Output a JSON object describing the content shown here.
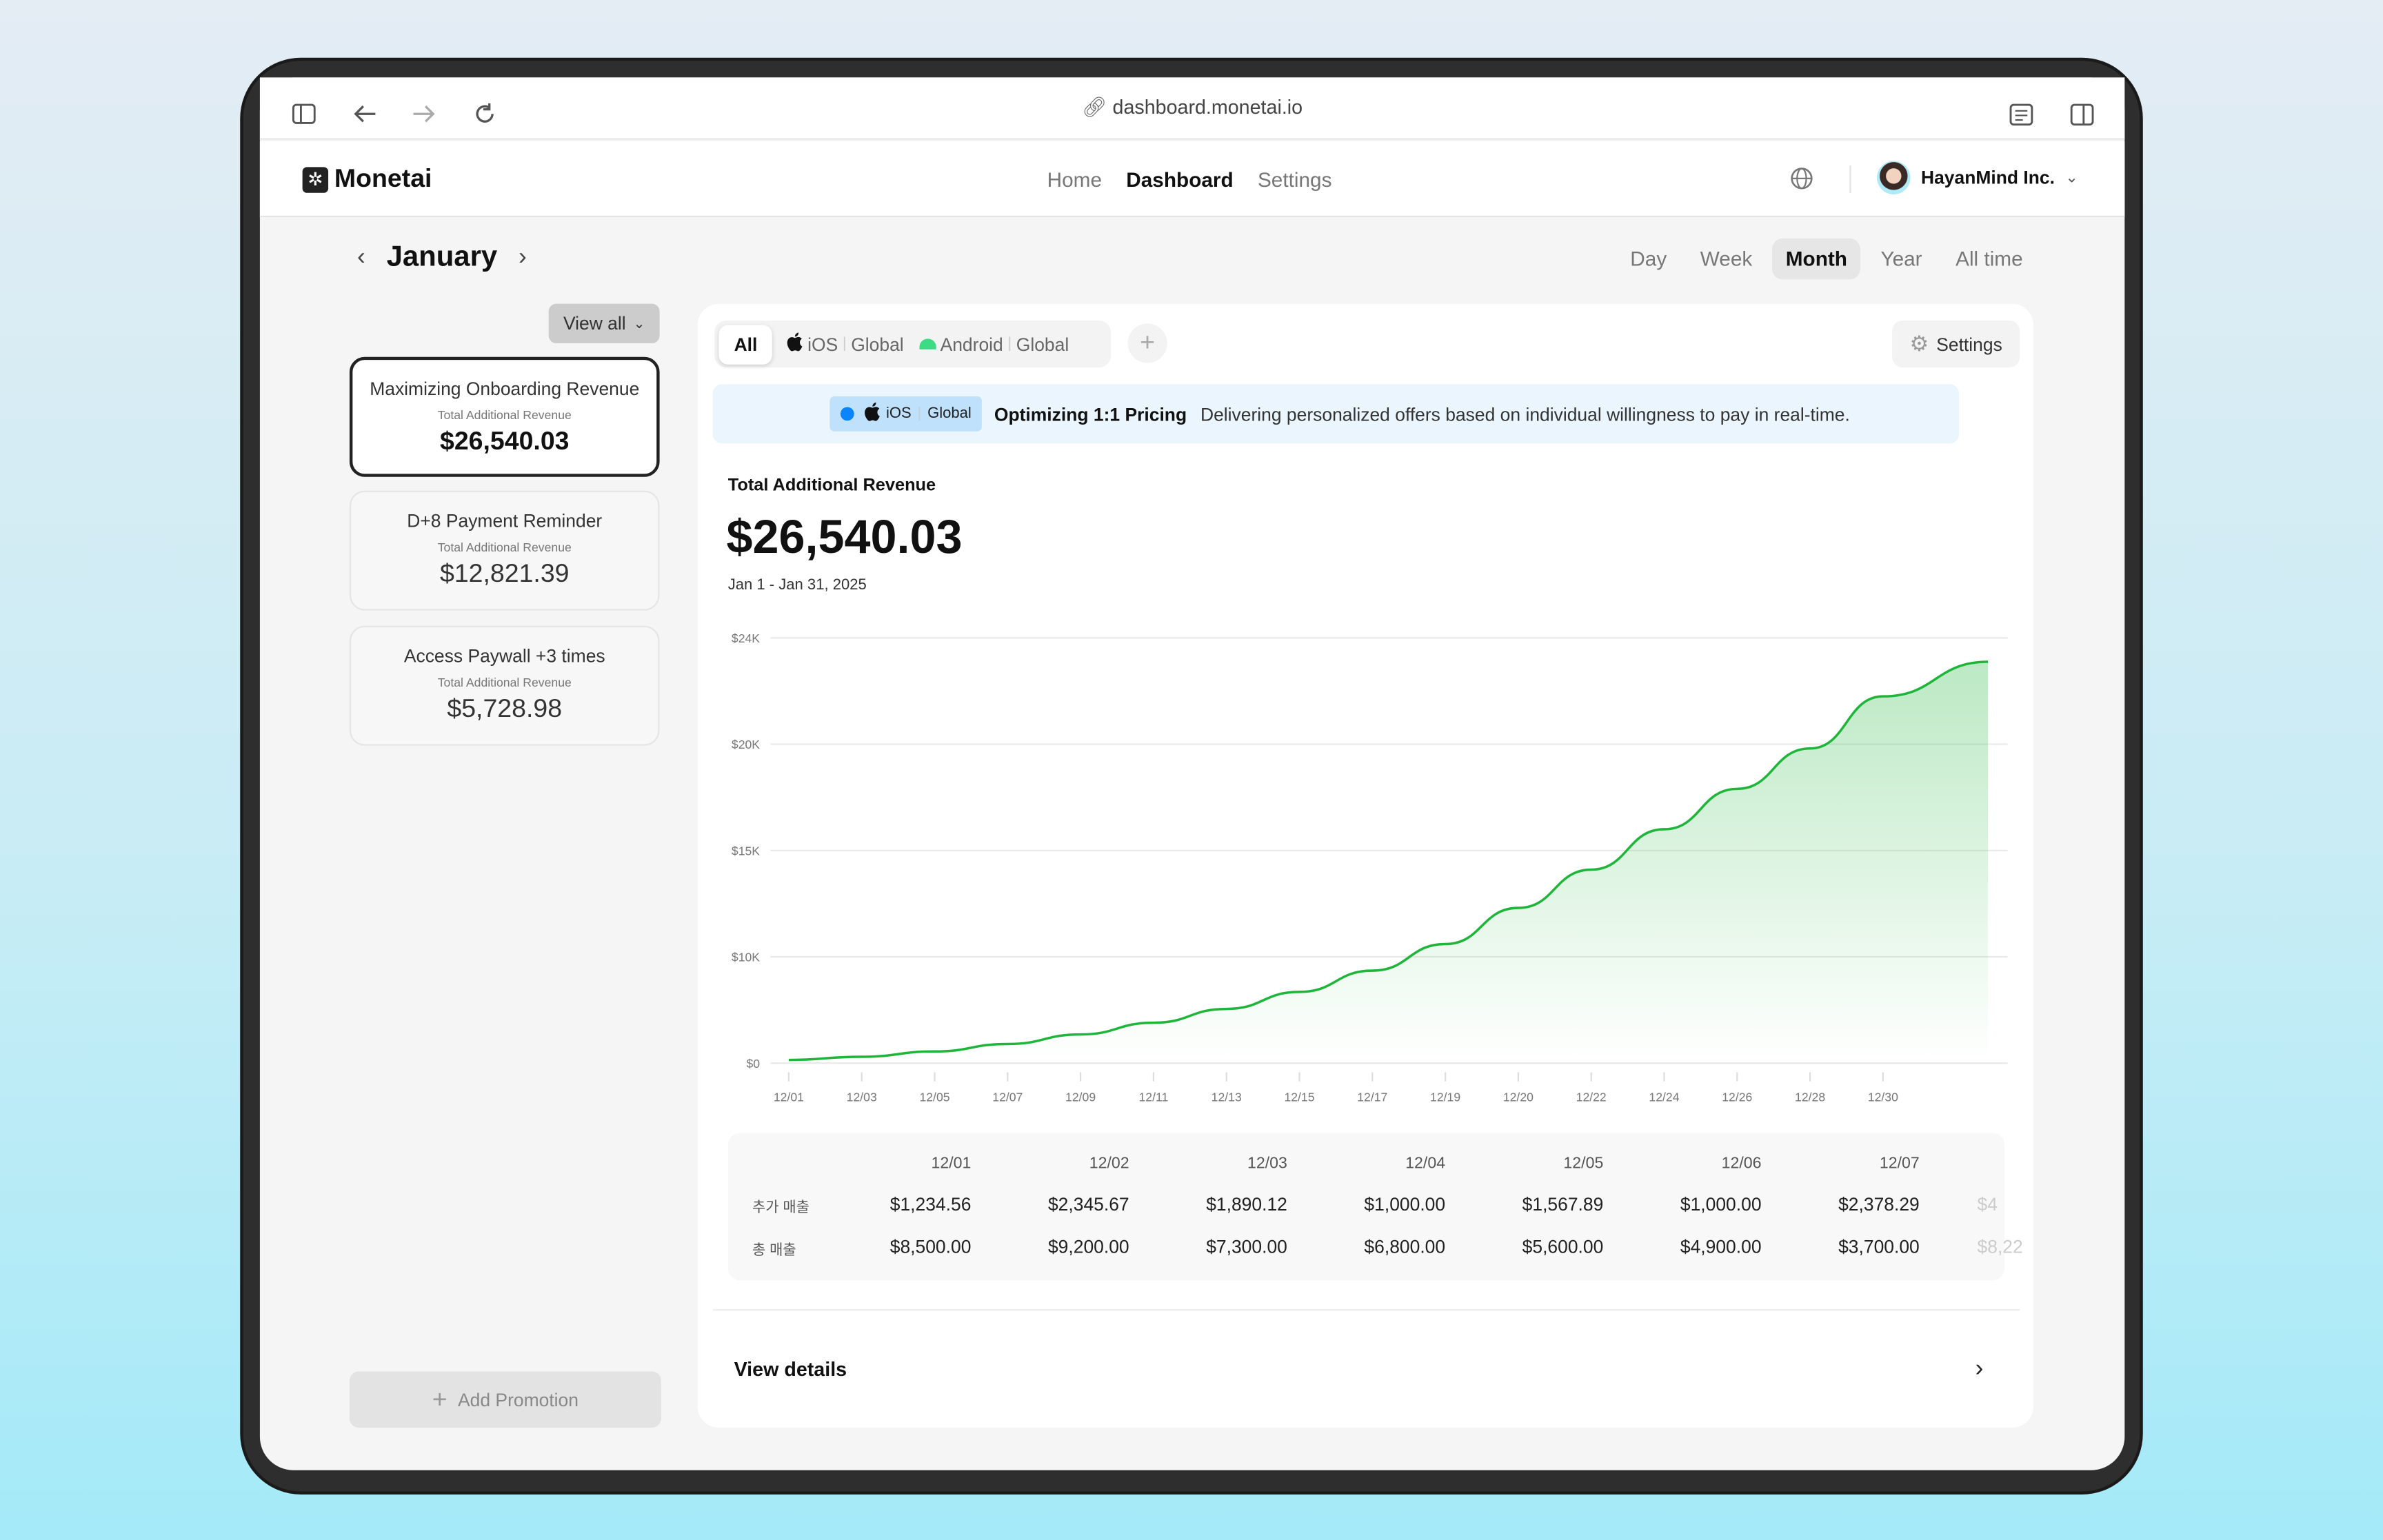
{
  "browser": {
    "url": "dashboard.monetai.io"
  },
  "header": {
    "logo": "Monetai",
    "nav": [
      {
        "label": "Home",
        "active": false
      },
      {
        "label": "Dashboard",
        "active": true
      },
      {
        "label": "Settings",
        "active": false
      }
    ],
    "account": "HayanMind Inc."
  },
  "period_nav": {
    "month": "January",
    "periods": [
      {
        "label": "Day",
        "active": false
      },
      {
        "label": "Week",
        "active": false
      },
      {
        "label": "Month",
        "active": true
      },
      {
        "label": "Year",
        "active": false
      },
      {
        "label": "All time",
        "active": false
      }
    ]
  },
  "sidebar": {
    "view_all": "View all",
    "promotions": [
      {
        "title": "Maximizing Onboarding Revenue",
        "label": "Total Additional Revenue",
        "value": "$26,540.03",
        "selected": true
      },
      {
        "title": "D+8 Payment Reminder",
        "label": "Total Additional Revenue",
        "value": "$12,821.39",
        "selected": false
      },
      {
        "title": "Access Paywall +3 times",
        "label": "Total Additional Revenue",
        "value": "$5,728.98",
        "selected": false
      }
    ],
    "add_label": "Add Promotion"
  },
  "filters": {
    "all": "All",
    "ios": {
      "os": "iOS",
      "region": "Global"
    },
    "android": {
      "os": "Android",
      "region": "Global"
    },
    "settings": "Settings"
  },
  "banner": {
    "os": "iOS",
    "region": "Global",
    "title": "Optimizing 1:1 Pricing",
    "text": "Delivering personalized offers based on individual willingness to pay in real-time.",
    "dot_color": "#0a84ff"
  },
  "summary": {
    "label": "Total Additional Revenue",
    "value": "$26,540.03",
    "range": "Jan 1 - Jan 31, 2025"
  },
  "chart_data": {
    "type": "area",
    "line_color": "#1fb53a",
    "grid": true,
    "y_ticks": [
      {
        "value": 0,
        "label": "$0"
      },
      {
        "value": 10000,
        "label": "$10K"
      },
      {
        "value": 15000,
        "label": "$15K"
      },
      {
        "value": 20000,
        "label": "$20K"
      },
      {
        "value": 24000,
        "label": "$24K"
      }
    ],
    "x": [
      "12/01",
      "12/03",
      "12/05",
      "12/07",
      "12/09",
      "12/11",
      "12/13",
      "12/15",
      "12/17",
      "12/19",
      "12/20",
      "12/22",
      "12/24",
      "12/26",
      "12/28",
      "12/30",
      ""
    ],
    "values": [
      300,
      600,
      1100,
      1800,
      2700,
      3800,
      5100,
      6700,
      8700,
      10600,
      12300,
      14100,
      16000,
      17900,
      19800,
      21800,
      23100
    ]
  },
  "table": {
    "dates": [
      "12/01",
      "12/02",
      "12/03",
      "12/04",
      "12/05",
      "12/06",
      "12/07",
      ""
    ],
    "rows": [
      {
        "label": "추가 매출",
        "values": [
          "$1,234.56",
          "$2,345.67",
          "$1,890.12",
          "$1,000.00",
          "$1,567.89",
          "$1,000.00",
          "$2,378.29",
          "$4"
        ]
      },
      {
        "label": "총 매출",
        "values": [
          "$8,500.00",
          "$9,200.00",
          "$7,300.00",
          "$6,800.00",
          "$5,600.00",
          "$4,900.00",
          "$3,700.00",
          "$8,22"
        ]
      }
    ]
  },
  "footer": {
    "view_details": "View details"
  }
}
